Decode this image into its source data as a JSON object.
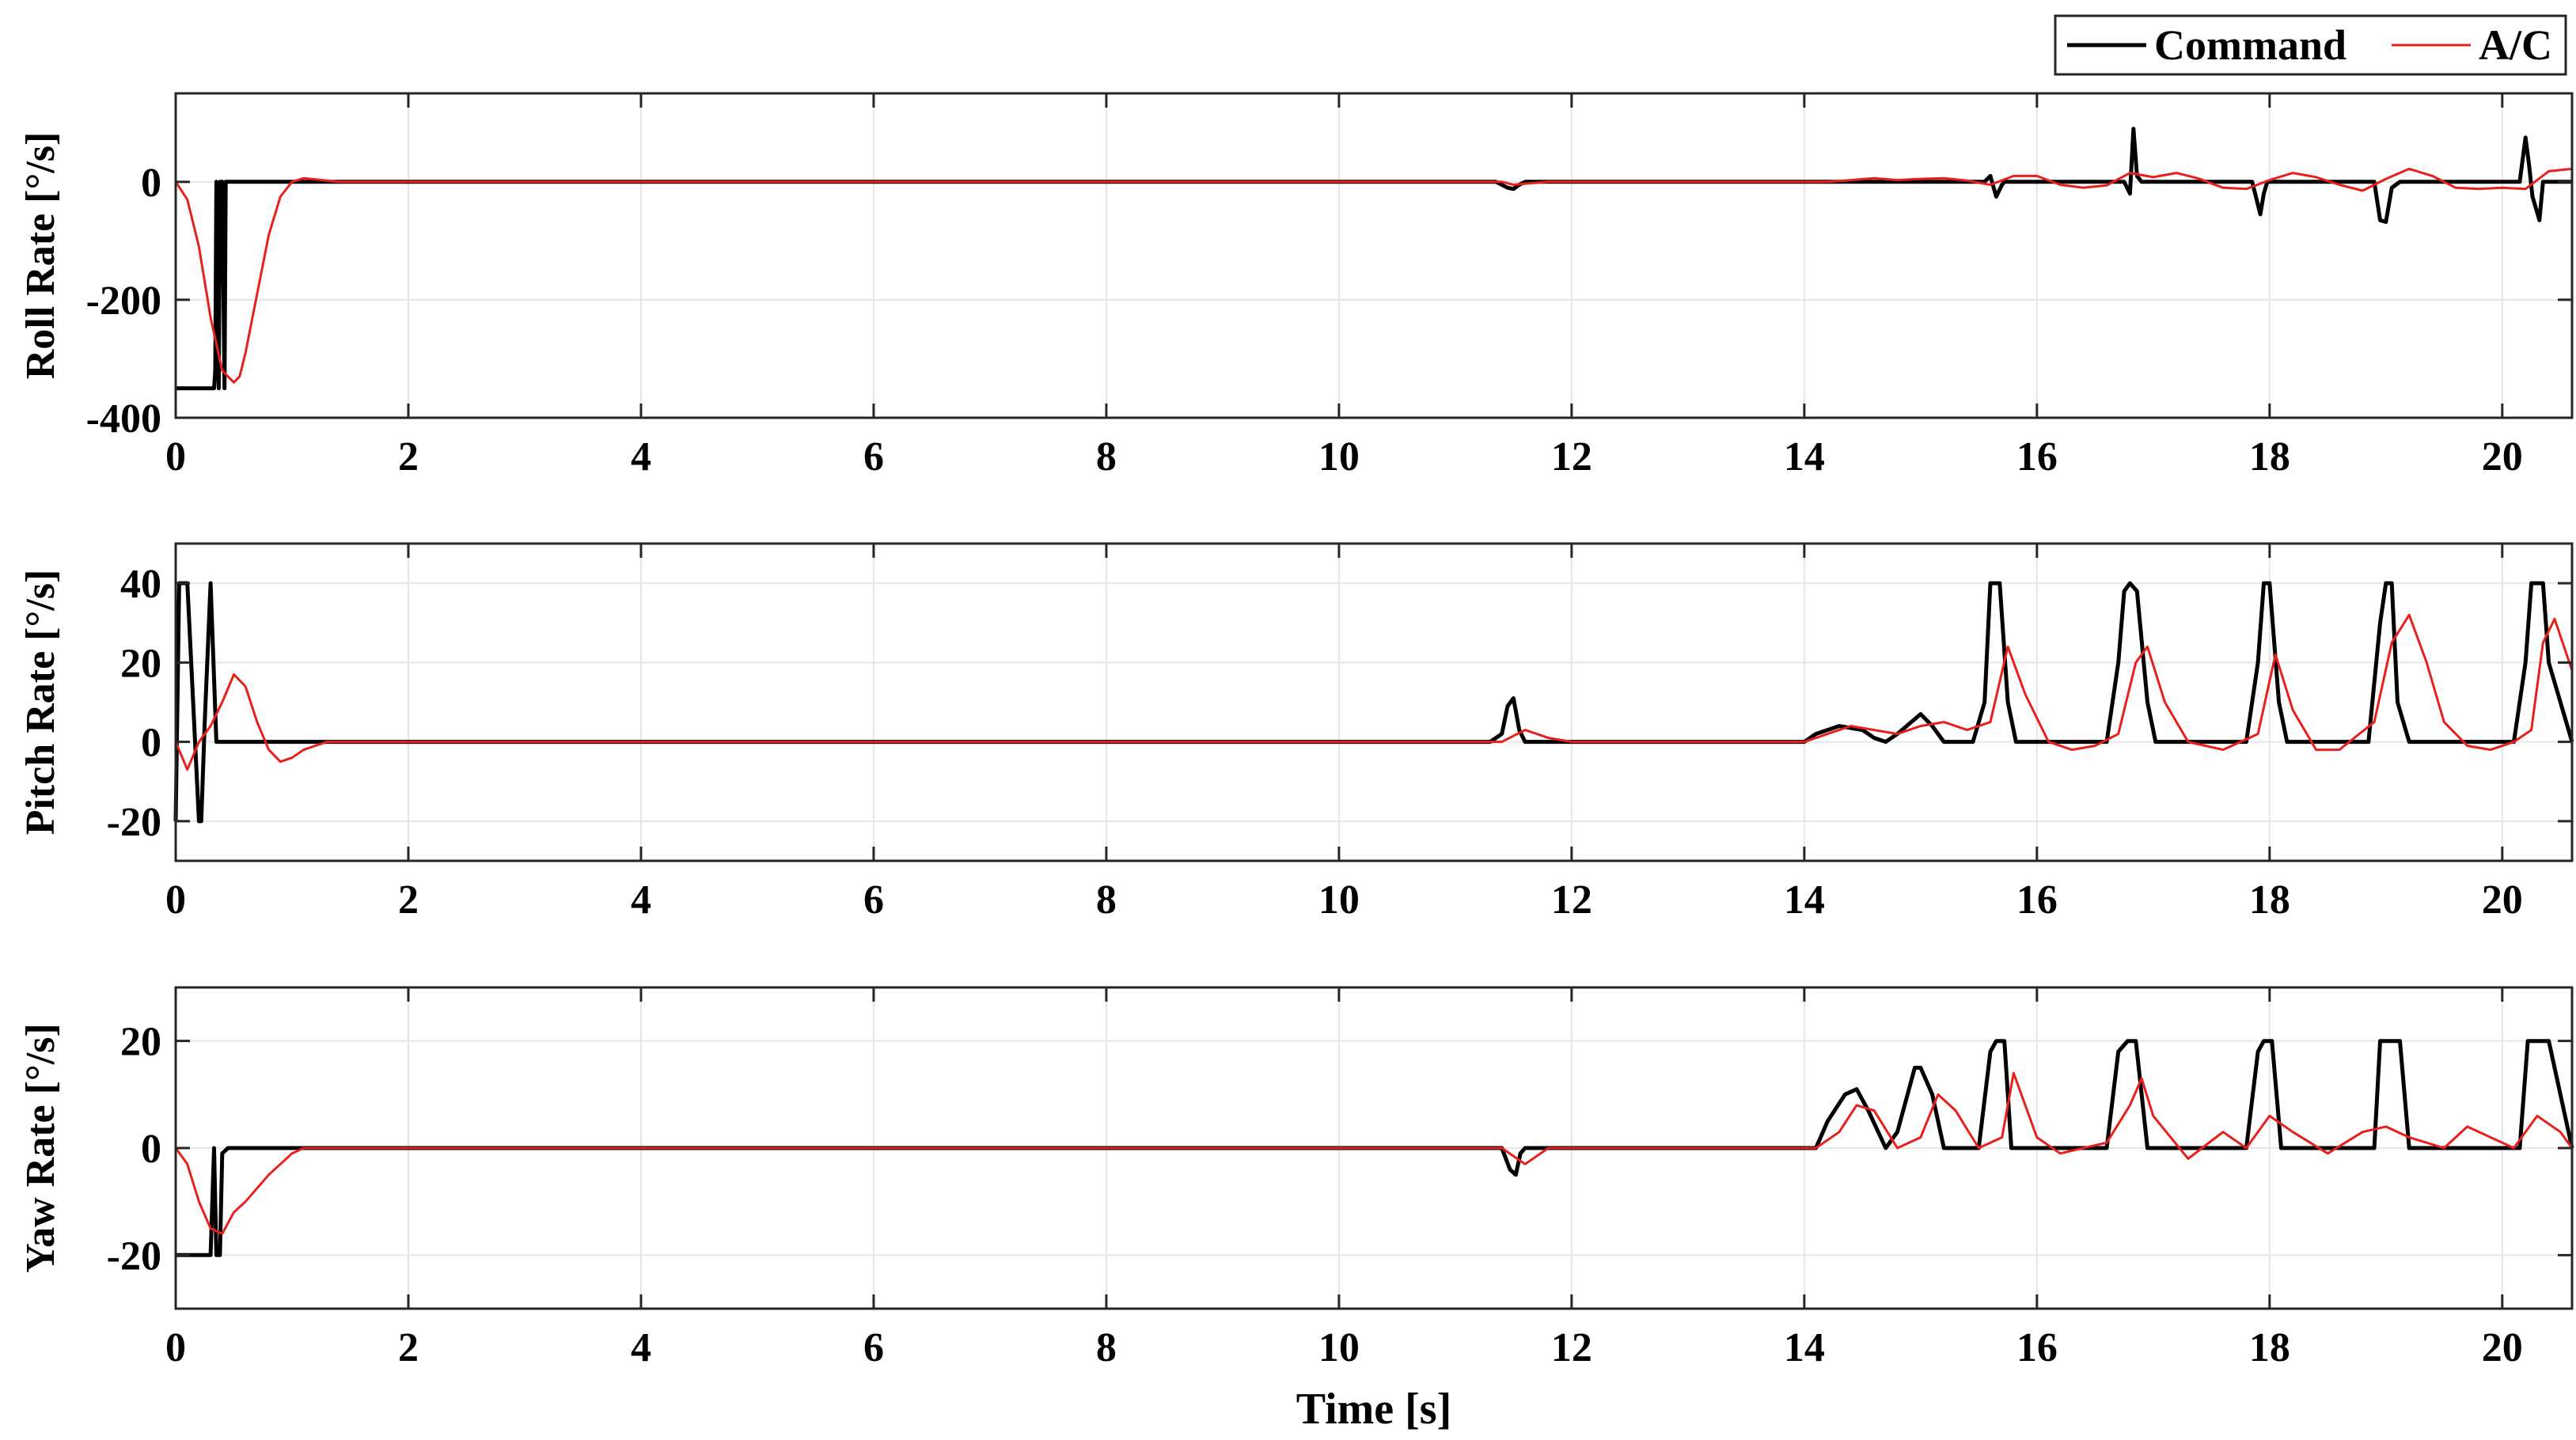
{
  "legend": {
    "command_label": "Command",
    "aircraft_label": "A/C",
    "placement": "top-right, outside"
  },
  "colors": {
    "command": "#000000",
    "aircraft": "#e8201b",
    "grid": "#e6e6e6",
    "axes": "#262626"
  },
  "chart_data": [
    {
      "type": "line",
      "ylabel": "Roll Rate [°/s]",
      "xlabel": "",
      "xlim": [
        0,
        20.6
      ],
      "ylim": [
        -400,
        150
      ],
      "xticks": [
        0,
        2,
        4,
        6,
        8,
        10,
        12,
        14,
        16,
        18,
        20
      ],
      "yticks": [
        -400,
        -200,
        0
      ],
      "grid": true,
      "series": [
        {
          "name": "Command",
          "color": "#000000",
          "x": [
            0,
            0.33,
            0.34,
            0.35,
            0.36,
            0.37,
            0.38,
            0.4,
            0.42,
            0.43,
            0.5,
            11.35,
            11.45,
            11.5,
            11.55,
            11.6,
            15.55,
            15.6,
            15.65,
            15.7,
            15.72,
            16.75,
            16.8,
            16.83,
            16.86,
            16.9,
            17.85,
            17.92,
            17.95,
            17.98,
            18.05,
            18.9,
            18.95,
            19.0,
            19.05,
            19.12,
            20.15,
            20.2,
            20.23,
            20.26,
            20.32,
            20.35,
            20.6
          ],
          "y": [
            -350,
            -350,
            -320,
            0,
            -200,
            -350,
            0,
            0,
            -350,
            0,
            0,
            0,
            -10,
            -12,
            -5,
            0,
            0,
            10,
            -25,
            -5,
            0,
            0,
            -20,
            90,
            10,
            0,
            0,
            -55,
            -20,
            0,
            0,
            0,
            -65,
            -68,
            -10,
            0,
            0,
            75,
            30,
            -25,
            -65,
            0,
            0
          ]
        },
        {
          "name": "A/C",
          "color": "#e8201b",
          "x": [
            0,
            0.1,
            0.2,
            0.3,
            0.4,
            0.5,
            0.55,
            0.6,
            0.7,
            0.8,
            0.9,
            1.0,
            1.1,
            1.2,
            1.4,
            1.6,
            2.0,
            11.4,
            11.5,
            11.6,
            11.8,
            14.2,
            14.4,
            14.6,
            14.8,
            15.0,
            15.2,
            15.4,
            15.6,
            15.8,
            16.0,
            16.2,
            16.4,
            16.6,
            16.8,
            17.0,
            17.2,
            17.4,
            17.6,
            17.8,
            18.0,
            18.2,
            18.4,
            18.6,
            18.8,
            19.0,
            19.2,
            19.4,
            19.6,
            19.8,
            20.0,
            20.2,
            20.4,
            20.6
          ],
          "y": [
            0,
            -30,
            -110,
            -230,
            -320,
            -340,
            -330,
            -290,
            -190,
            -90,
            -25,
            0,
            6,
            4,
            0,
            0,
            0,
            0,
            -5,
            -3,
            0,
            0,
            3,
            6,
            3,
            5,
            6,
            2,
            -5,
            10,
            10,
            -5,
            -10,
            -6,
            15,
            8,
            15,
            5,
            -10,
            -12,
            3,
            15,
            8,
            -5,
            -15,
            5,
            22,
            10,
            -10,
            -12,
            -10,
            -12,
            18,
            22
          ]
        }
      ]
    },
    {
      "type": "line",
      "ylabel": "Pitch Rate [°/s]",
      "xlabel": "",
      "xlim": [
        0,
        20.6
      ],
      "ylim": [
        -30,
        50
      ],
      "xticks": [
        0,
        2,
        4,
        6,
        8,
        10,
        12,
        14,
        16,
        18,
        20
      ],
      "yticks": [
        -20,
        0,
        20,
        40
      ],
      "grid": true,
      "series": [
        {
          "name": "Command",
          "color": "#000000",
          "x": [
            0,
            0.03,
            0.1,
            0.2,
            0.22,
            0.25,
            0.3,
            0.35,
            0.4,
            0.45,
            0.5,
            11.3,
            11.4,
            11.45,
            11.5,
            11.55,
            11.6,
            14.0,
            14.1,
            14.3,
            14.5,
            14.6,
            14.7,
            14.8,
            15.0,
            15.1,
            15.2,
            15.3,
            15.45,
            15.55,
            15.6,
            15.68,
            15.75,
            15.82,
            16.6,
            16.7,
            16.75,
            16.8,
            16.86,
            16.95,
            17.02,
            17.8,
            17.9,
            17.95,
            18.0,
            18.08,
            18.15,
            18.85,
            18.95,
            19.0,
            19.05,
            19.1,
            19.2,
            20.1,
            20.2,
            20.25,
            20.35,
            20.4,
            20.6
          ],
          "y": [
            -20,
            40,
            40,
            -20,
            -20,
            5,
            40,
            0,
            0,
            0,
            0,
            0,
            2,
            9,
            11,
            3,
            0,
            0,
            2,
            4,
            3,
            1,
            0,
            2,
            7,
            4,
            0,
            0,
            0,
            10,
            40,
            40,
            10,
            0,
            0,
            20,
            38,
            40,
            38,
            10,
            0,
            0,
            20,
            40,
            40,
            10,
            0,
            0,
            30,
            40,
            40,
            10,
            0,
            0,
            20,
            40,
            40,
            20,
            0
          ]
        },
        {
          "name": "A/C",
          "color": "#e8201b",
          "x": [
            0,
            0.1,
            0.2,
            0.3,
            0.4,
            0.5,
            0.6,
            0.7,
            0.8,
            0.9,
            1.0,
            1.1,
            1.3,
            1.6,
            11.4,
            11.6,
            11.8,
            12.0,
            14.0,
            14.2,
            14.4,
            14.6,
            14.8,
            15.0,
            15.2,
            15.4,
            15.6,
            15.75,
            15.9,
            16.1,
            16.3,
            16.5,
            16.7,
            16.85,
            16.95,
            17.1,
            17.3,
            17.6,
            17.9,
            18.05,
            18.2,
            18.4,
            18.6,
            18.9,
            19.05,
            19.2,
            19.35,
            19.5,
            19.7,
            19.9,
            20.1,
            20.25,
            20.35,
            20.45,
            20.6
          ],
          "y": [
            0,
            -7,
            0,
            4,
            10,
            17,
            14,
            5,
            -2,
            -5,
            -4,
            -2,
            0,
            0,
            0,
            3,
            1,
            0,
            0,
            2,
            4,
            3,
            2,
            4,
            5,
            3,
            5,
            24,
            12,
            0,
            -2,
            -1,
            2,
            20,
            24,
            10,
            0,
            -2,
            2,
            22,
            8,
            -2,
            -2,
            5,
            25,
            32,
            20,
            5,
            -1,
            -2,
            0,
            3,
            25,
            31,
            18
          ]
        }
      ]
    },
    {
      "type": "line",
      "ylabel": "Yaw Rate [°/s]",
      "xlabel": "Time [s]",
      "xlim": [
        0,
        20.6
      ],
      "ylim": [
        -30,
        30
      ],
      "xticks": [
        0,
        2,
        4,
        6,
        8,
        10,
        12,
        14,
        16,
        18,
        20
      ],
      "yticks": [
        -20,
        0,
        20
      ],
      "grid": true,
      "series": [
        {
          "name": "Command",
          "color": "#000000",
          "x": [
            0,
            0.3,
            0.33,
            0.35,
            0.38,
            0.4,
            0.45,
            0.5,
            11.4,
            11.47,
            11.52,
            11.56,
            11.6,
            14.1,
            14.2,
            14.35,
            14.45,
            14.55,
            14.7,
            14.8,
            14.95,
            15.0,
            15.1,
            15.2,
            15.5,
            15.6,
            15.65,
            15.72,
            15.78,
            16.6,
            16.7,
            16.78,
            16.85,
            16.95,
            17.8,
            17.9,
            17.95,
            18.02,
            18.1,
            18.9,
            18.95,
            19.05,
            19.12,
            19.2,
            20.15,
            20.22,
            20.32,
            20.4,
            20.6
          ],
          "y": [
            -20,
            -20,
            0,
            -20,
            -20,
            -1,
            0,
            0,
            0,
            -4,
            -5,
            -1,
            0,
            0,
            5,
            10,
            11,
            7,
            0,
            3,
            15,
            15,
            10,
            0,
            0,
            18,
            20,
            20,
            0,
            0,
            18,
            20,
            20,
            0,
            0,
            18,
            20,
            20,
            0,
            0,
            20,
            20,
            20,
            0,
            0,
            20,
            20,
            20,
            0
          ]
        },
        {
          "name": "A/C",
          "color": "#e8201b",
          "x": [
            0,
            0.1,
            0.2,
            0.3,
            0.4,
            0.5,
            0.6,
            0.8,
            1.0,
            1.1,
            1.3,
            1.5,
            11.4,
            11.6,
            11.8,
            14.1,
            14.3,
            14.45,
            14.6,
            14.8,
            15.0,
            15.15,
            15.3,
            15.5,
            15.7,
            15.8,
            16.0,
            16.2,
            16.6,
            16.8,
            16.9,
            17.0,
            17.3,
            17.6,
            17.8,
            18.0,
            18.2,
            18.5,
            18.8,
            19.0,
            19.2,
            19.5,
            19.7,
            19.9,
            20.1,
            20.3,
            20.5,
            20.6
          ],
          "y": [
            0,
            -3,
            -10,
            -15,
            -16,
            -12,
            -10,
            -5,
            -1,
            0,
            0,
            0,
            0,
            -3,
            0,
            0,
            3,
            8,
            7,
            0,
            2,
            10,
            7,
            0,
            2,
            14,
            2,
            -1,
            1,
            8,
            13,
            6,
            -2,
            3,
            0,
            6,
            3,
            -1,
            3,
            4,
            2,
            0,
            4,
            2,
            0,
            6,
            3,
            0
          ]
        }
      ]
    }
  ]
}
